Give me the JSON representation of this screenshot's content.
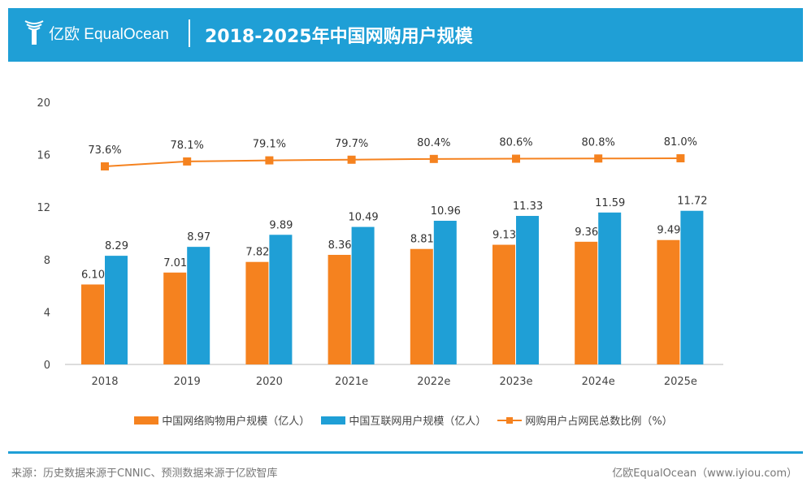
{
  "header": {
    "logo_text": "亿欧 EqualOcean",
    "title": "2018-2025年中国网购用户规模"
  },
  "chart_data": {
    "type": "bar",
    "categories": [
      "2018",
      "2019",
      "2020",
      "2021e",
      "2022e",
      "2023e",
      "2024e",
      "2025e"
    ],
    "series": [
      {
        "name": "中国网络购物用户规模（亿人）",
        "type": "bar",
        "color": "#f5821f",
        "values": [
          6.1,
          7.01,
          7.82,
          8.36,
          8.81,
          9.13,
          9.36,
          9.49
        ]
      },
      {
        "name": "中国互联网用户规模（亿人）",
        "type": "bar",
        "color": "#1f9fd6",
        "values": [
          8.29,
          8.97,
          9.89,
          10.49,
          10.96,
          11.33,
          11.59,
          11.72
        ]
      },
      {
        "name": "网购用户占网民总数比例（%）",
        "type": "line",
        "color": "#f5821f",
        "values": [
          73.6,
          78.1,
          79.1,
          79.7,
          80.4,
          80.6,
          80.8,
          81.0
        ]
      }
    ],
    "yticks": [
      0,
      4,
      8,
      12,
      16,
      20
    ],
    "ylim": [
      0,
      20
    ],
    "grid": false,
    "legend": "bottom"
  },
  "footer": {
    "source": "来源：历史数据来源于CNNIC、预测数据来源于亿欧智库",
    "credit": "亿欧EqualOcean（www.iyiou.com）"
  }
}
